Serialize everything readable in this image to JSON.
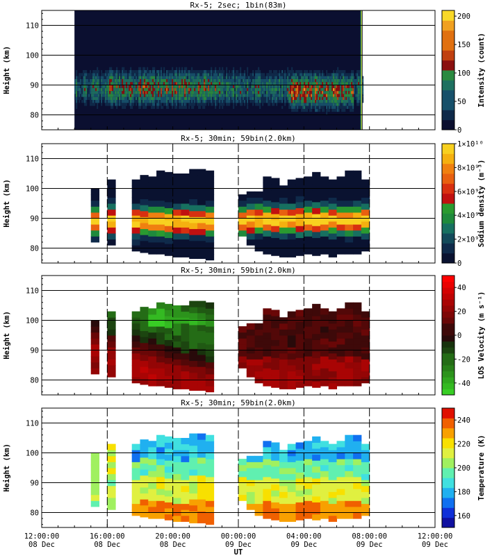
{
  "chart_data": [
    {
      "type": "heatmap",
      "title": "Rx-5;  2sec; 1bin(83m)",
      "ylabel": "Height (km)",
      "ylim": [
        75,
        115
      ],
      "yticks": [
        80,
        90,
        100,
        110
      ],
      "colorbar": {
        "label": "Intensity (count)",
        "range": [
          0,
          210
        ],
        "ticks": [
          "0",
          "50",
          "100",
          "150",
          "200"
        ],
        "tick_values": [
          0,
          50,
          100,
          150,
          200
        ]
      },
      "hlines": [
        80,
        90,
        100,
        110
      ],
      "vlines": [],
      "data_range": [
        "2024-12-08T14:00",
        "2024-12-09T07:35"
      ]
    },
    {
      "type": "heatmap",
      "title": "Rx-5; 30min; 59bin(2.0km)",
      "ylabel": "Height (km)",
      "ylim": [
        75,
        115
      ],
      "yticks": [
        80,
        90,
        100,
        110
      ],
      "colorbar": {
        "label": "Sodium density (m⁻³)",
        "range": [
          0,
          10000000000.0
        ],
        "ticks": [
          "0",
          "2×10⁹",
          "4×10⁹",
          "6×10⁹",
          "8×10⁹",
          "1×10¹⁰"
        ],
        "tick_values": [
          0,
          2000000000.0,
          4000000000.0,
          6000000000.0,
          8000000000.0,
          10000000000.0
        ]
      },
      "hlines": [
        80,
        90,
        100,
        110
      ],
      "vlines": [
        "16:00",
        "20:00",
        "00:00",
        "04:00",
        "08:00"
      ],
      "layer_peak_km": 89
    },
    {
      "type": "heatmap",
      "title": "Rx-5; 30min; 59bin(2.0km)",
      "ylabel": "Height (km)",
      "ylim": [
        75,
        115
      ],
      "yticks": [
        80,
        90,
        100,
        110
      ],
      "colorbar": {
        "label": "LOS Velocity (m s⁻¹)",
        "range": [
          -50,
          50
        ],
        "ticks": [
          "-40",
          "-20",
          "0",
          "20",
          "40"
        ],
        "tick_values": [
          -40,
          -20,
          0,
          20,
          40
        ]
      },
      "hlines": [
        80,
        90,
        100,
        110
      ],
      "vlines": [
        "16:00",
        "20:00",
        "00:00",
        "04:00",
        "08:00"
      ]
    },
    {
      "type": "heatmap",
      "title": "Rx-5; 30min; 59bin(2.0km)",
      "ylabel": "Height (km)",
      "ylim": [
        75,
        115
      ],
      "yticks": [
        80,
        90,
        100,
        110
      ],
      "colorbar": {
        "label": "Temperature (K)",
        "range": [
          150,
          250
        ],
        "ticks": [
          "160",
          "180",
          "200",
          "220",
          "240"
        ],
        "tick_values": [
          160,
          180,
          200,
          220,
          240
        ]
      },
      "hlines": [
        80,
        90,
        100,
        110
      ],
      "vlines": [
        "16:00",
        "20:00",
        "00:00",
        "04:00",
        "08:00"
      ]
    }
  ],
  "shared_x": {
    "xlabel": "UT",
    "xlim_hours": [
      12,
      36
    ],
    "ticks": [
      {
        "time": "12:00:00",
        "date": "08 Dec"
      },
      {
        "time": "16:00:00",
        "date": "08 Dec"
      },
      {
        "time": "20:00:00",
        "date": "08 Dec"
      },
      {
        "time": "00:00:00",
        "date": "09 Dec"
      },
      {
        "time": "04:00:00",
        "date": "09 Dec"
      },
      {
        "time": "08:00:00",
        "date": "09 Dec"
      },
      {
        "time": "12:00:00",
        "date": "09 Dec"
      }
    ]
  },
  "observation_columns": {
    "start_hours": [
      15.0,
      15.5,
      16.0,
      16.5,
      17.5,
      18.0,
      18.5,
      19.0,
      19.5,
      20.0,
      20.5,
      21.0,
      21.5,
      22.0,
      22.5,
      23.0,
      23.5,
      24.0,
      24.5,
      25.0,
      25.5,
      26.0,
      26.5,
      27.0,
      27.5,
      28.0,
      28.5,
      29.0,
      29.5,
      30.0,
      30.5,
      31.0,
      31.5
    ],
    "bottom_km": [
      82,
      0,
      81,
      0,
      79,
      78.5,
      78,
      78,
      77.5,
      77,
      77,
      76.5,
      76.5,
      76,
      0,
      0,
      0,
      84,
      81,
      79,
      78,
      77.5,
      77,
      77,
      77.5,
      78,
      77.5,
      78,
      77,
      78,
      78,
      78,
      79
    ],
    "top_km": [
      100,
      0,
      101.5,
      0,
      102,
      103,
      104,
      104.5,
      104,
      104,
      104.5,
      105,
      106,
      104.5,
      0,
      0,
      0,
      97,
      98.5,
      98.5,
      102.5,
      102.5,
      101,
      102,
      102,
      103,
      104.5,
      104,
      103,
      104,
      105.5,
      104.5,
      101.5
    ]
  }
}
